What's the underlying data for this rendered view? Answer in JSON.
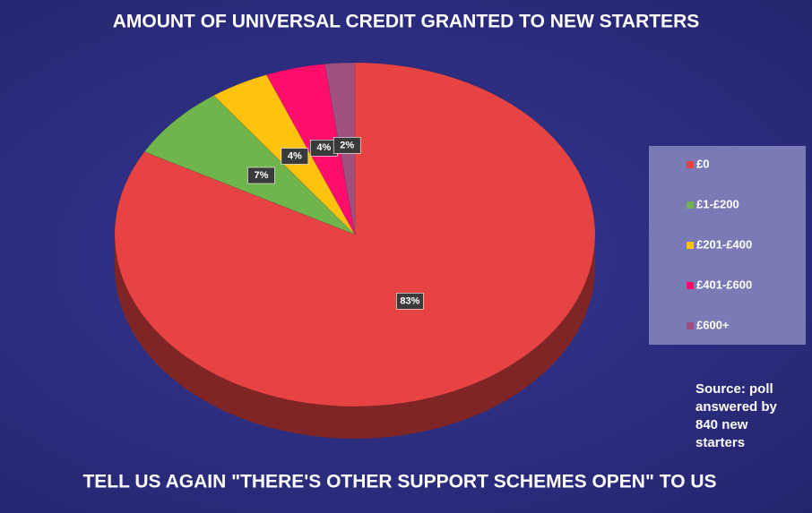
{
  "chart_data": {
    "type": "pie",
    "title": "AMOUNT OF UNIVERSAL CREDIT GRANTED TO NEW STARTERS",
    "subtitle": "TELL US AGAIN \"THERE'S OTHER SUPPORT SCHEMES OPEN\" TO US",
    "categories": [
      "£0",
      "£1-£200",
      "£201-£400",
      "£401-£600",
      "£600+"
    ],
    "values": [
      83,
      7,
      4,
      4,
      2
    ],
    "value_labels": [
      "83%",
      "7%",
      "4%",
      "4%",
      "2%"
    ],
    "colors": [
      "#e84343",
      "#70b44c",
      "#ffc20e",
      "#ff0e6c",
      "#a0507e"
    ],
    "legend": "right",
    "source": "Source: poll answered by 840 new starters"
  }
}
